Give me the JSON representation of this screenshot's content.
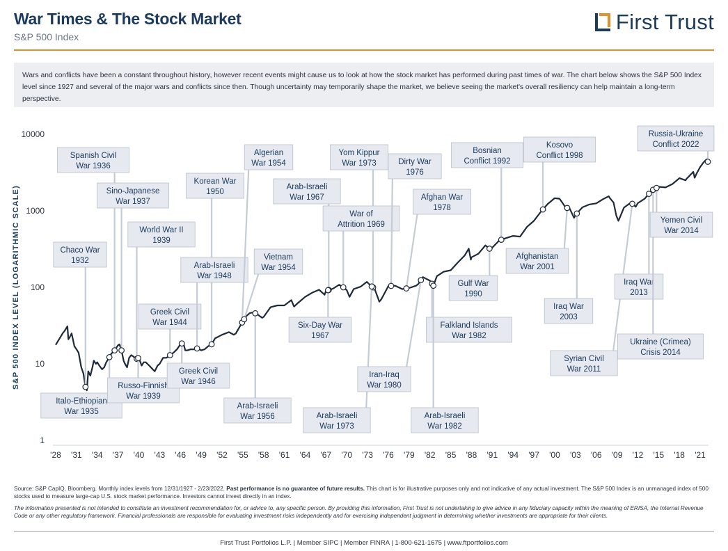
{
  "header": {
    "title": "War Times & The Stock Market",
    "subtitle": "S&P 500 Index",
    "logo_text": "First Trust"
  },
  "intro": "Wars and conflicts have been a constant throughout history, however recent events might cause us to look at how the stock market has performed during past times of war. The chart below shows the S&P 500 Index level since 1927 and several of the major wars and conflicts since then. Though uncertainty may temporarily shape the market, we believe seeing the market's overall resiliency can help maintain a long-term perspective.",
  "source": {
    "lead": "Source: S&P CapIQ, Bloomberg. Monthly index levels from 12/31/1927 - 2/23/2022. ",
    "bold": "Past performance is no guarantee of future results.",
    "rest": " This chart is for illustrative purposes only and not indicative of any actual investment. The S&P 500 Index is an unmanaged index of 500 stocks used to measure large-cap U.S. stock market performance. Investors cannot invest directly in an index."
  },
  "disclaimer": "The information presented is not intended to constitute an investment recommendation for, or advice to, any specific person. By providing this information, First Trust is not undertaking to give advice in any fiduciary capacity within the meaning of ERISA, the Internal Revenue Code or any other regulatory framework. Financial professionals are responsible for evaluating investment risks independently and for exercising independent judgment in determining whether investments are appropriate for their clients.",
  "footer": "First Trust Portfolios L.P.  |  Member SIPC  |  Member FINRA  |  1-800-621-1675  |  www.ftportfolios.com",
  "colors": {
    "navy": "#1b3a5c",
    "orange": "#e0902e",
    "line": "#1e2a3a",
    "label_bg": "#e6e9ef",
    "label_border": "#b8c0cc"
  },
  "chart_data": {
    "type": "line",
    "ylabel": "S&P 500 INDEX LEVEL (LOGARITHMIC SCALE)",
    "yscale": "log",
    "ylim": [
      1,
      10000
    ],
    "yticks": [
      1,
      10,
      100,
      1000,
      10000
    ],
    "ytick_labels": [
      "1",
      "10",
      "100",
      "1000",
      "10000"
    ],
    "xlim": [
      1928,
      2022.2
    ],
    "xticks": [
      1928,
      1931,
      1934,
      1937,
      1940,
      1943,
      1946,
      1949,
      1952,
      1955,
      1958,
      1961,
      1964,
      1967,
      1970,
      1973,
      1976,
      1979,
      1982,
      1985,
      1988,
      1991,
      1994,
      1997,
      2000,
      2003,
      2006,
      2009,
      2012,
      2015,
      2018,
      2021
    ],
    "xtick_labels": [
      "'28",
      "'31",
      "'34",
      "'37",
      "'40",
      "'43",
      "'46",
      "'49",
      "'52",
      "'55",
      "'58",
      "'61",
      "'64",
      "'67",
      "'70",
      "'73",
      "'76",
      "'79",
      "'82",
      "'85",
      "'88",
      "'91",
      "'94",
      "'97",
      "'00",
      "'03",
      "'06",
      "'09",
      "'12",
      "'15",
      "'18",
      "'21"
    ],
    "grid": false,
    "series": [
      {
        "x": [
          1928,
          1928.5,
          1929,
          1929.3,
          1929.7,
          1929.83,
          1930.0,
          1930.3,
          1930.7,
          1931.0,
          1931.3,
          1931.7,
          1932.0,
          1932.3,
          1932.5,
          1932.7,
          1933.0,
          1933.3,
          1933.5,
          1933.8,
          1934.0,
          1934.3,
          1934.7,
          1935.0,
          1935.3,
          1935.7,
          1936.0,
          1936.5,
          1937.0,
          1937.2,
          1937.5,
          1937.8,
          1938.0,
          1938.3,
          1938.6,
          1938.9,
          1939.2,
          1939.6,
          1940.0,
          1940.4,
          1940.7,
          1941.0,
          1941.5,
          1942.0,
          1942.3,
          1942.7,
          1943.0,
          1943.5,
          1944.0,
          1944.5,
          1945.0,
          1945.5,
          1946.0,
          1946.4,
          1946.7,
          1947.0,
          1947.5,
          1948.0,
          1948.5,
          1949.0,
          1949.5,
          1950.0,
          1950.5,
          1951.0,
          1952.0,
          1953.0,
          1953.7,
          1954.0,
          1955.0,
          1955.5,
          1956.0,
          1956.5,
          1957.0,
          1957.8,
          1958.0,
          1959.0,
          1960.0,
          1961.0,
          1962.0,
          1962.4,
          1963.0,
          1964.0,
          1965.0,
          1966.0,
          1966.8,
          1967.0,
          1968.0,
          1968.9,
          1969.5,
          1970.0,
          1970.4,
          1971.0,
          1972.0,
          1972.9,
          1973.5,
          1974.0,
          1974.7,
          1975.0,
          1976.0,
          1977.0,
          1978.0,
          1979.0,
          1980.0,
          1980.3,
          1981.0,
          1982.0,
          1982.5,
          1983.0,
          1984.0,
          1985.0,
          1986.0,
          1987.0,
          1987.6,
          1987.9,
          1988.0,
          1989.0,
          1990.0,
          1990.8,
          1991.0,
          1992.0,
          1993.0,
          1994.0,
          1995.0,
          1996.0,
          1997.0,
          1998.0,
          1999.0,
          2000.0,
          2000.7,
          2001.0,
          2001.7,
          2002.0,
          2002.8,
          2003.0,
          2004.0,
          2005.0,
          2006.0,
          2007.0,
          2007.8,
          2008.0,
          2008.5,
          2008.9,
          2009.2,
          2010.0,
          2011.0,
          2011.7,
          2012.0,
          2013.0,
          2014.0,
          2015.0,
          2016.0,
          2017.0,
          2018.0,
          2018.9,
          2019.0,
          2020.0,
          2020.2,
          2020.5,
          2021.0,
          2021.5,
          2021.9,
          2022.15
        ],
        "values": [
          17.7,
          21,
          25,
          27,
          31,
          21,
          22,
          25,
          17,
          15.5,
          14,
          9,
          7.5,
          5,
          4.5,
          8,
          7,
          9,
          11,
          10,
          10.5,
          9.5,
          8.5,
          9,
          10.5,
          12,
          13.5,
          15,
          17.5,
          18,
          15,
          11,
          10,
          9,
          12,
          13,
          12.5,
          11.5,
          12,
          9.5,
          10.5,
          10.5,
          9.5,
          8.5,
          8,
          9.5,
          10,
          12,
          12,
          13,
          14,
          15.5,
          18,
          19,
          15,
          15,
          15.5,
          15.5,
          16,
          15,
          15.5,
          17,
          18,
          21.5,
          24,
          26,
          24,
          25,
          36,
          42,
          46,
          47,
          45,
          40,
          41,
          55,
          58,
          58,
          68,
          56,
          63,
          75,
          85,
          93,
          80,
          90,
          96,
          108,
          100,
          92,
          75,
          95,
          102,
          118,
          104,
          97,
          65,
          70,
          104,
          105,
          95,
          98,
          105,
          110,
          136,
          122,
          105,
          140,
          160,
          167,
          210,
          260,
          320,
          230,
          247,
          275,
          353,
          310,
          330,
          410,
          440,
          470,
          460,
          615,
          740,
          970,
          1230,
          1460,
          1440,
          1320,
          1060,
          1150,
          810,
          880,
          1110,
          1210,
          1250,
          1420,
          1550,
          1450,
          1280,
          860,
          740,
          1100,
          1280,
          1130,
          1260,
          1440,
          1840,
          2060,
          2020,
          2240,
          2670,
          2500,
          2600,
          3230,
          2700,
          3100,
          3750,
          4300,
          4700,
          4300
        ]
      }
    ],
    "annotations": [
      {
        "label": [
          "Chaco War",
          "1932"
        ],
        "x": 1932.3
      },
      {
        "label": [
          "Spanish Civil",
          "War 1936"
        ],
        "x": 1936.5
      },
      {
        "label": [
          "Italo-Ethiopian",
          "War 1935"
        ],
        "x": 1935.75
      },
      {
        "label": [
          "Sino-Japanese",
          "War 1937"
        ],
        "x": 1937.5
      },
      {
        "label": [
          "World War II",
          "1939"
        ],
        "x": 1939.7
      },
      {
        "label": [
          "Russo-Finnish",
          "War 1939"
        ],
        "x": 1939.9
      },
      {
        "label": [
          "Greek Civil",
          "War 1944"
        ],
        "x": 1944.5
      },
      {
        "label": [
          "Greek Civil",
          "War 1946"
        ],
        "x": 1946.2
      },
      {
        "label": [
          "Korean War",
          "1950"
        ],
        "x": 1950.5
      },
      {
        "label": [
          "Arab-Israeli",
          "War 1948"
        ],
        "x": 1948.4
      },
      {
        "label": [
          "Algerian",
          "War 1954"
        ],
        "x": 1954.9
      },
      {
        "label": [
          "Vietnam",
          "War 1954"
        ],
        "x": 1955.2
      },
      {
        "label": [
          "Arab-Israeli",
          "War 1956"
        ],
        "x": 1956.8
      },
      {
        "label": [
          "Arab-Israeli",
          "War 1967"
        ],
        "x": 1967.4
      },
      {
        "label": [
          "Six-Day War",
          "1967"
        ],
        "x": 1967.3
      },
      {
        "label": [
          "Yom Kippur",
          "War 1973"
        ],
        "x": 1973.8
      },
      {
        "label": [
          "War of",
          "Attrition 1969"
        ],
        "x": 1969.5
      },
      {
        "label": [
          "Arab-Israeli",
          "War 1973"
        ],
        "x": 1973.6
      },
      {
        "label": [
          "Dirty War",
          "1976"
        ],
        "x": 1976.4
      },
      {
        "label": [
          "Afghan War",
          "1978"
        ],
        "x": 1978.6
      },
      {
        "label": [
          "Iran-Iraq",
          "War 1980"
        ],
        "x": 1980.7
      },
      {
        "label": [
          "Falkland Islands",
          "War 1982"
        ],
        "x": 1982.3
      },
      {
        "label": [
          "Arab-Israeli",
          "War 1982"
        ],
        "x": 1982.5
      },
      {
        "label": [
          "Bosnian",
          "Conflict 1992"
        ],
        "x": 1992.3
      },
      {
        "label": [
          "Gulf War",
          "1990"
        ],
        "x": 1990.6
      },
      {
        "label": [
          "Kosovo",
          "Conflict 1998"
        ],
        "x": 1998.3
      },
      {
        "label": [
          "Afghanistan",
          "War 2001"
        ],
        "x": 2001.8
      },
      {
        "label": [
          "Iraq War",
          "2003"
        ],
        "x": 2003.2
      },
      {
        "label": [
          "Syrian Civil",
          "War 2011"
        ],
        "x": 2011.2
      },
      {
        "label": [
          "Iraq War",
          "2013"
        ],
        "x": 2013.6
      },
      {
        "label": [
          "Ukraine (Crimea)",
          "Crisis 2014"
        ],
        "x": 2014.2
      },
      {
        "label": [
          "Yemen Civil",
          "War 2014"
        ],
        "x": 2014.7
      },
      {
        "label": [
          "Russia-Ukraine",
          "Conflict 2022"
        ],
        "x": 2022.1
      }
    ]
  }
}
